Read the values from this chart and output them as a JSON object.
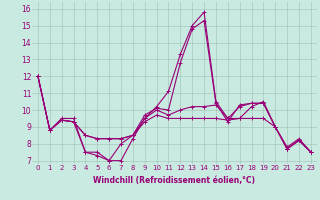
{
  "xlabel": "Windchill (Refroidissement éolien,°C)",
  "bg_color": "#c8eae0",
  "line_color": "#990077",
  "grid_color": "#9ebfb4",
  "ylim": [
    6.8,
    16.4
  ],
  "xlim": [
    -0.5,
    23.5
  ],
  "series": [
    [
      12,
      8.8,
      9.5,
      9.5,
      7.5,
      7.5,
      7.0,
      7.0,
      8.3,
      9.5,
      10.2,
      11.1,
      13.3,
      15.0,
      15.8,
      10.5,
      9.5,
      9.5,
      10.2,
      10.5,
      9.0,
      7.8,
      8.3,
      7.5
    ],
    [
      12,
      8.8,
      9.4,
      9.3,
      7.5,
      7.3,
      7.0,
      8.0,
      8.5,
      9.7,
      10.1,
      10.0,
      12.8,
      14.8,
      15.3,
      10.4,
      9.3,
      10.3,
      10.4,
      10.4,
      9.0,
      7.7,
      8.2,
      7.5
    ],
    [
      12,
      8.8,
      9.4,
      9.3,
      8.5,
      8.3,
      8.3,
      8.3,
      8.5,
      9.5,
      10.0,
      9.7,
      10.0,
      10.2,
      10.2,
      10.3,
      9.5,
      10.2,
      10.4,
      10.4,
      9.0,
      7.7,
      8.2,
      7.5
    ],
    [
      12,
      8.8,
      9.4,
      9.3,
      8.5,
      8.3,
      8.3,
      8.3,
      8.5,
      9.3,
      9.7,
      9.5,
      9.5,
      9.5,
      9.5,
      9.5,
      9.4,
      9.5,
      9.5,
      9.5,
      9.0,
      7.7,
      8.2,
      7.5
    ]
  ],
  "yticks": [
    7,
    8,
    9,
    10,
    11,
    12,
    13,
    14,
    15,
    16
  ],
  "xticks": [
    0,
    1,
    2,
    3,
    4,
    5,
    6,
    7,
    8,
    9,
    10,
    11,
    12,
    13,
    14,
    15,
    16,
    17,
    18,
    19,
    20,
    21,
    22,
    23
  ],
  "marker": "+",
  "markersize": 3,
  "linewidth": 0.8
}
